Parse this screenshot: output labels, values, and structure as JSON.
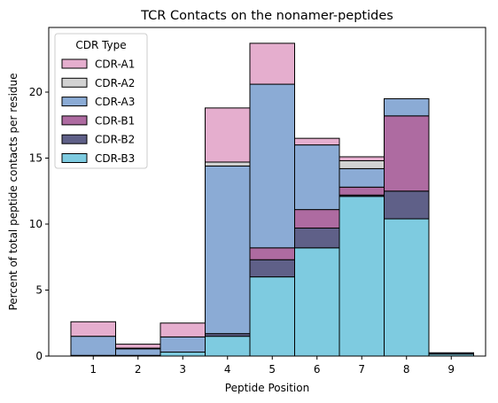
{
  "chart_data": {
    "type": "bar",
    "stacked": true,
    "title": "TCR Contacts on the nonamer-peptides",
    "xlabel": "Peptide Position",
    "ylabel": "Percent of total peptide contacts per residue",
    "categories": [
      "1",
      "2",
      "3",
      "4",
      "5",
      "6",
      "7",
      "8",
      "9"
    ],
    "yticks": [
      0,
      5,
      10,
      15,
      20
    ],
    "ylim": [
      0,
      24.9
    ],
    "legend": {
      "title": "CDR Type",
      "placement": "top-left"
    },
    "series": [
      {
        "name": "CDR-B3",
        "color": "#7ecbe0",
        "values": [
          0.05,
          0.05,
          0.3,
          1.5,
          6.0,
          8.2,
          12.1,
          10.4,
          0.15
        ]
      },
      {
        "name": "CDR-B2",
        "color": "#5f6088",
        "values": [
          0.0,
          0.0,
          0.0,
          0.2,
          1.3,
          1.5,
          0.1,
          2.1,
          0.1
        ]
      },
      {
        "name": "CDR-B1",
        "color": "#ae6ba1",
        "values": [
          0.0,
          0.0,
          0.0,
          0.0,
          0.9,
          1.4,
          0.6,
          5.7,
          0.0
        ]
      },
      {
        "name": "CDR-A3",
        "color": "#8babd5",
        "values": [
          1.45,
          0.5,
          1.15,
          12.7,
          12.4,
          4.9,
          1.4,
          1.3,
          0.0
        ]
      },
      {
        "name": "CDR-A2",
        "color": "#d2d2d2",
        "values": [
          0.0,
          0.05,
          0.0,
          0.3,
          0.0,
          0.0,
          0.6,
          0.0,
          0.0
        ]
      },
      {
        "name": "CDR-A1",
        "color": "#e5aece",
        "values": [
          1.1,
          0.3,
          1.05,
          4.1,
          3.1,
          0.5,
          0.3,
          0.0,
          0.0
        ]
      }
    ],
    "legend_order": [
      "CDR-A1",
      "CDR-A2",
      "CDR-A3",
      "CDR-B1",
      "CDR-B2",
      "CDR-B3"
    ]
  }
}
